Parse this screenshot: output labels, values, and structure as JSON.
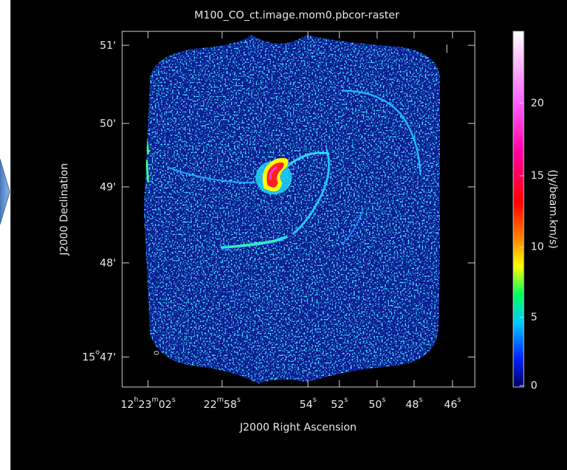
{
  "title": "M100_CO_ct.image.mom0.pbcor-raster",
  "x_axis": {
    "label": "J2000 Right Ascension",
    "ticks": [
      {
        "parts": [
          "12",
          "h",
          "23",
          "m",
          "02",
          "s"
        ]
      },
      {
        "parts": [
          "22",
          "m",
          "58",
          "s"
        ]
      },
      {
        "parts": [
          "54",
          "s"
        ]
      },
      {
        "parts": [
          "52",
          "s"
        ]
      },
      {
        "parts": [
          "50",
          "s"
        ]
      },
      {
        "parts": [
          "48",
          "s"
        ]
      },
      {
        "parts": [
          "46",
          "s"
        ]
      }
    ]
  },
  "y_axis": {
    "label": "J2000 Declination",
    "ticks": [
      {
        "parts": [
          "51'"
        ]
      },
      {
        "parts": [
          "50'"
        ]
      },
      {
        "parts": [
          "49'"
        ]
      },
      {
        "parts": [
          "48'"
        ]
      },
      {
        "parts": [
          "15",
          "o",
          "47'"
        ]
      }
    ]
  },
  "colorbar": {
    "label": "(Jy/beam.km/s)",
    "ticks": [
      20,
      15,
      10,
      5,
      0
    ]
  }
}
